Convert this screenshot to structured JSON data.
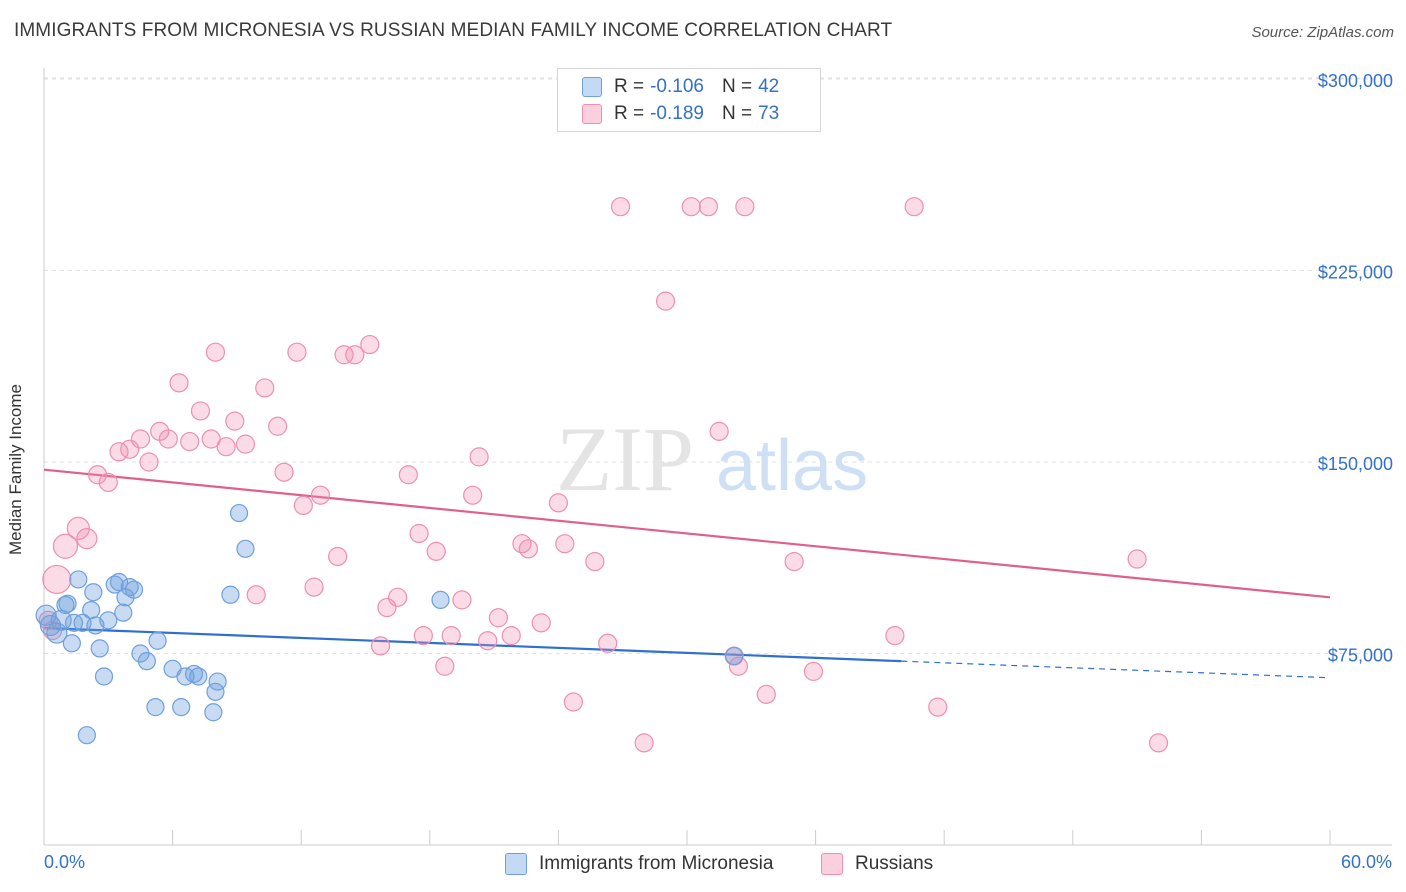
{
  "title": "IMMIGRANTS FROM MICRONESIA VS RUSSIAN MEDIAN FAMILY INCOME CORRELATION CHART",
  "source": "Source: ZipAtlas.com",
  "watermark": {
    "zip": "ZIP",
    "atlas": "atlas"
  },
  "colors": {
    "blue": "#6ea0de",
    "blue_line": "#2f6fd1",
    "pink": "#ee8fb0",
    "pink_line": "#e05f8d",
    "accent_text": "#3471c9"
  },
  "stats": [
    {
      "r_label": "R =",
      "r_value": "-0.106",
      "n_label": "N =",
      "n_value": "42"
    },
    {
      "r_label": "R =",
      "r_value": "-0.189",
      "n_label": "N =",
      "n_value": "73"
    }
  ],
  "legend": [
    "Immigrants from Micronesia",
    "Russians"
  ],
  "chart_data": {
    "type": "scatter",
    "title": "IMMIGRANTS FROM MICRONESIA VS RUSSIAN MEDIAN FAMILY INCOME CORRELATION CHART",
    "xlabel": "",
    "ylabel": "Median Family Income",
    "x_tick_labels": [
      "0.0%",
      "60.0%"
    ],
    "y_tick_labels": [
      "$75,000",
      "$150,000",
      "$225,000",
      "$300,000"
    ],
    "y_ticks": [
      75000,
      150000,
      225000,
      300000
    ],
    "xlim": [
      0,
      60
    ],
    "ylim": [
      0,
      310000
    ],
    "grid": "horizontal dashed",
    "series": [
      {
        "name": "Immigrants from Micronesia",
        "color": "#6ea0de",
        "trend": {
          "x0": 0,
          "y0": 85000,
          "x1": 40,
          "y1": 72000,
          "dashed_to_x": 60,
          "dashed_to_y": 65500
        },
        "points": [
          [
            0.1,
            90000
          ],
          [
            0.3,
            86000
          ],
          [
            0.6,
            83000
          ],
          [
            0.8,
            88000
          ],
          [
            1.0,
            94000
          ],
          [
            1.1,
            94500
          ],
          [
            1.3,
            79000
          ],
          [
            1.4,
            87000
          ],
          [
            1.6,
            104000
          ],
          [
            1.8,
            87000
          ],
          [
            2.0,
            43000
          ],
          [
            2.2,
            92000
          ],
          [
            2.3,
            99000
          ],
          [
            2.4,
            86000
          ],
          [
            2.6,
            77000
          ],
          [
            2.8,
            66000
          ],
          [
            3.0,
            88000
          ],
          [
            3.3,
            102000
          ],
          [
            3.5,
            103000
          ],
          [
            3.7,
            91000
          ],
          [
            3.8,
            97000
          ],
          [
            4.0,
            101000
          ],
          [
            4.2,
            100000
          ],
          [
            4.5,
            75000
          ],
          [
            4.8,
            72000
          ],
          [
            5.2,
            54000
          ],
          [
            5.3,
            80000
          ],
          [
            6.0,
            69000
          ],
          [
            6.4,
            54000
          ],
          [
            6.6,
            66000
          ],
          [
            7.0,
            67000
          ],
          [
            7.2,
            66000
          ],
          [
            7.9,
            52000
          ],
          [
            8.0,
            60000
          ],
          [
            8.1,
            64000
          ],
          [
            8.7,
            98000
          ],
          [
            9.1,
            130000
          ],
          [
            9.4,
            116000
          ],
          [
            18.5,
            96000
          ],
          [
            32.2,
            74000
          ]
        ]
      },
      {
        "name": "Russians",
        "color": "#ee8fb0",
        "trend": {
          "x0": 0,
          "y0": 147000,
          "x1": 60,
          "y1": 97000
        },
        "points": [
          [
            0.2,
            88000
          ],
          [
            0.4,
            84000
          ],
          [
            0.6,
            104000
          ],
          [
            1.0,
            117000
          ],
          [
            1.6,
            124000
          ],
          [
            2.0,
            120000
          ],
          [
            2.5,
            145000
          ],
          [
            3.0,
            142000
          ],
          [
            3.5,
            154000
          ],
          [
            4.0,
            155000
          ],
          [
            4.5,
            159000
          ],
          [
            4.9,
            150000
          ],
          [
            5.4,
            162000
          ],
          [
            5.8,
            159000
          ],
          [
            6.3,
            181000
          ],
          [
            6.8,
            158000
          ],
          [
            7.3,
            170000
          ],
          [
            7.8,
            159000
          ],
          [
            8.0,
            193000
          ],
          [
            8.5,
            156000
          ],
          [
            8.9,
            166000
          ],
          [
            9.4,
            157000
          ],
          [
            9.9,
            98000
          ],
          [
            10.3,
            179000
          ],
          [
            10.9,
            164000
          ],
          [
            11.2,
            146000
          ],
          [
            11.8,
            193000
          ],
          [
            12.1,
            133000
          ],
          [
            12.6,
            101000
          ],
          [
            12.9,
            137000
          ],
          [
            13.7,
            113000
          ],
          [
            14.0,
            192000
          ],
          [
            14.5,
            192000
          ],
          [
            15.2,
            196000
          ],
          [
            15.7,
            78000
          ],
          [
            16.0,
            93000
          ],
          [
            16.5,
            97000
          ],
          [
            17.0,
            145000
          ],
          [
            17.5,
            122000
          ],
          [
            17.7,
            82000
          ],
          [
            18.3,
            115000
          ],
          [
            18.7,
            70000
          ],
          [
            19.0,
            82000
          ],
          [
            19.5,
            96000
          ],
          [
            20.0,
            137000
          ],
          [
            20.3,
            152000
          ],
          [
            20.7,
            80000
          ],
          [
            21.2,
            89000
          ],
          [
            21.8,
            82000
          ],
          [
            22.3,
            118000
          ],
          [
            22.6,
            116000
          ],
          [
            23.2,
            87000
          ],
          [
            24.0,
            134000
          ],
          [
            24.3,
            118000
          ],
          [
            24.7,
            56000
          ],
          [
            25.7,
            111000
          ],
          [
            26.3,
            79000
          ],
          [
            26.9,
            250000
          ],
          [
            28.0,
            40000
          ],
          [
            29.0,
            213000
          ],
          [
            30.2,
            250000
          ],
          [
            31.0,
            250000
          ],
          [
            31.5,
            162000
          ],
          [
            32.2,
            74000
          ],
          [
            32.4,
            70000
          ],
          [
            32.7,
            250000
          ],
          [
            33.7,
            59000
          ],
          [
            35.0,
            111000
          ],
          [
            35.9,
            68000
          ],
          [
            39.7,
            82000
          ],
          [
            40.6,
            250000
          ],
          [
            41.7,
            54000
          ],
          [
            51.0,
            112000
          ],
          [
            52.0,
            40000
          ]
        ]
      }
    ]
  }
}
